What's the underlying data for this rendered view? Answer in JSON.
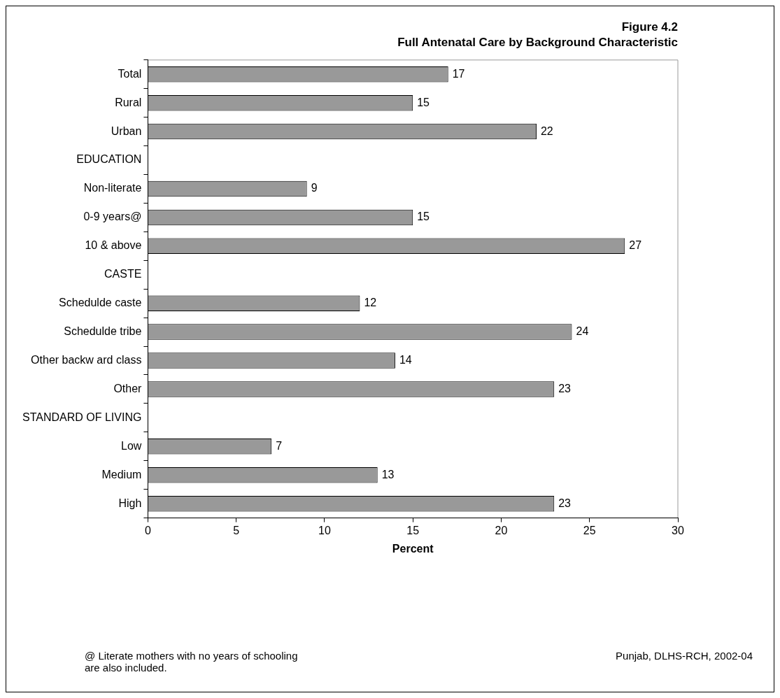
{
  "chart_data": {
    "type": "bar",
    "orientation": "horizontal",
    "title": "Figure 4.2",
    "subtitle": "Full Antenatal Care by Background Characteristic",
    "categories": [
      "Total",
      "Rural",
      "Urban",
      "EDUCATION",
      "Non-literate",
      "0-9 years@",
      "10 & above",
      "CASTE",
      "Schedulde caste",
      "Schedulde tribe",
      "Other backw ard class",
      "Other",
      "STANDARD OF LIVING",
      "Low",
      "Medium",
      "High"
    ],
    "values": [
      17,
      15,
      22,
      null,
      9,
      15,
      27,
      null,
      12,
      24,
      14,
      23,
      null,
      7,
      13,
      23
    ],
    "color": "#999999",
    "xlabel": "Percent",
    "xlim": [
      0,
      30
    ],
    "xticks": [
      0,
      5,
      10,
      15,
      20,
      25,
      30
    ],
    "grid": false,
    "legend": false,
    "data_labels": true,
    "annotations": [
      "@ Literate mothers with no years of schooling\nare also included.",
      "Punjab, DLHS-RCH, 2002-04"
    ]
  }
}
